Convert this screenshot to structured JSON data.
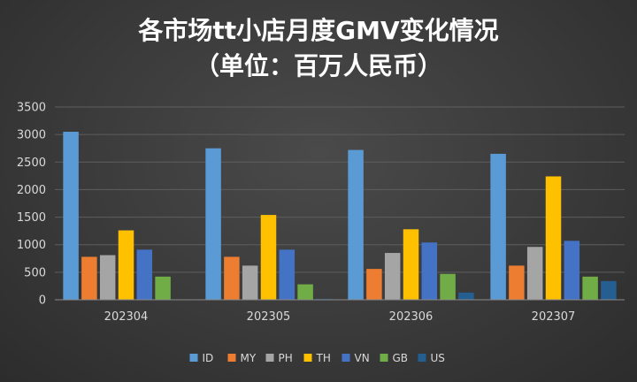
{
  "chart_data": {
    "type": "bar",
    "title_line1": "各市场tt小店月度GMV变化情况",
    "title_line2": "（单位：百万人民币）",
    "categories": [
      "202304",
      "202305",
      "202306",
      "202307"
    ],
    "ylim": [
      0,
      3500
    ],
    "yticks": [
      0,
      500,
      1000,
      1500,
      2000,
      2500,
      3000,
      3500
    ],
    "grid": true,
    "legend_position": "bottom",
    "series": [
      {
        "name": "ID",
        "color": "#5b9bd5",
        "values": [
          3050,
          2750,
          2720,
          2650
        ]
      },
      {
        "name": "MY",
        "color": "#ed7d31",
        "values": [
          780,
          780,
          560,
          620
        ]
      },
      {
        "name": "PH",
        "color": "#a5a5a5",
        "values": [
          810,
          620,
          850,
          960
        ]
      },
      {
        "name": "TH",
        "color": "#ffc000",
        "values": [
          1260,
          1540,
          1280,
          2240
        ]
      },
      {
        "name": "VN",
        "color": "#4472c4",
        "values": [
          910,
          910,
          1040,
          1070
        ]
      },
      {
        "name": "GB",
        "color": "#70ad47",
        "values": [
          420,
          280,
          470,
          420
        ]
      },
      {
        "name": "US",
        "color": "#255e91",
        "values": [
          8,
          15,
          130,
          340
        ]
      }
    ]
  }
}
